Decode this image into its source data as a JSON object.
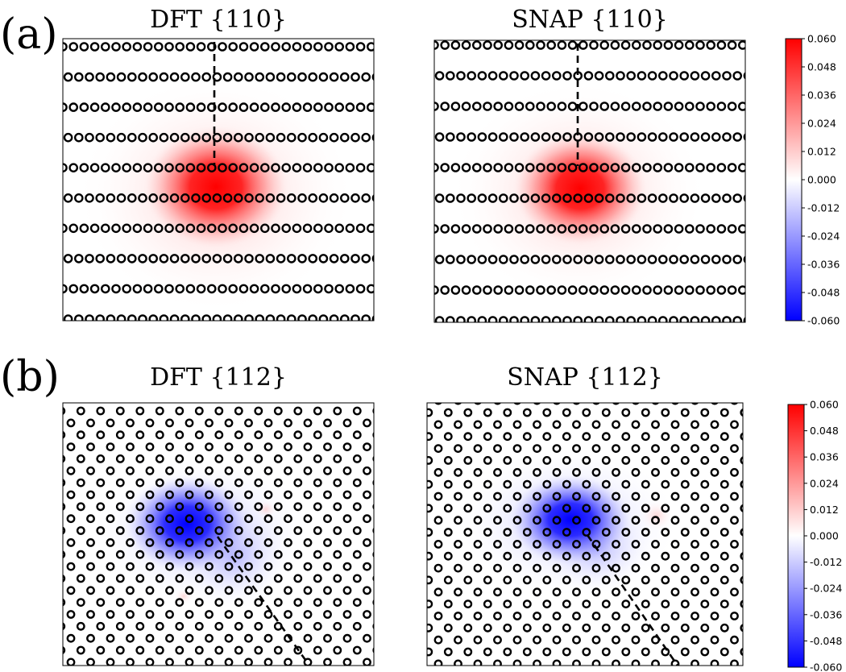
{
  "panels": [
    {
      "label": "(a)"
    },
    {
      "label": "(b)"
    }
  ],
  "colorbar": {
    "colormap": "bwr",
    "min": -0.06,
    "max": 0.06,
    "ticks": [
      "0.060",
      "0.048",
      "0.036",
      "0.024",
      "0.012",
      "0.000",
      "-0.012",
      "-0.024",
      "-0.036",
      "-0.048",
      "-0.060"
    ]
  },
  "chart_data": [
    {
      "type": "heatmap",
      "title": "DFT {110}",
      "panel": "(a)",
      "color_min": -0.06,
      "color_max": 0.06,
      "atom_pattern": "{110} rows",
      "peak_sign": "positive",
      "peak_value": 0.06,
      "dislocation_line": "vertical dashed"
    },
    {
      "type": "heatmap",
      "title": "SNAP {110}",
      "panel": "(a)",
      "color_min": -0.06,
      "color_max": 0.06,
      "atom_pattern": "{110} rows",
      "peak_sign": "positive",
      "peak_value": 0.06,
      "dislocation_line": "vertical dashed"
    },
    {
      "type": "heatmap",
      "title": "DFT {112}",
      "panel": "(b)",
      "color_min": -0.06,
      "color_max": 0.06,
      "atom_pattern": "{112} triangular lattice",
      "peak_sign": "negative",
      "peak_value": -0.06,
      "dislocation_line": "diagonal dashed"
    },
    {
      "type": "heatmap",
      "title": "SNAP {112}",
      "panel": "(b)",
      "color_min": -0.06,
      "color_max": 0.06,
      "atom_pattern": "{112} triangular lattice",
      "peak_sign": "negative",
      "peak_value": -0.055,
      "dislocation_line": "diagonal dashed"
    }
  ]
}
